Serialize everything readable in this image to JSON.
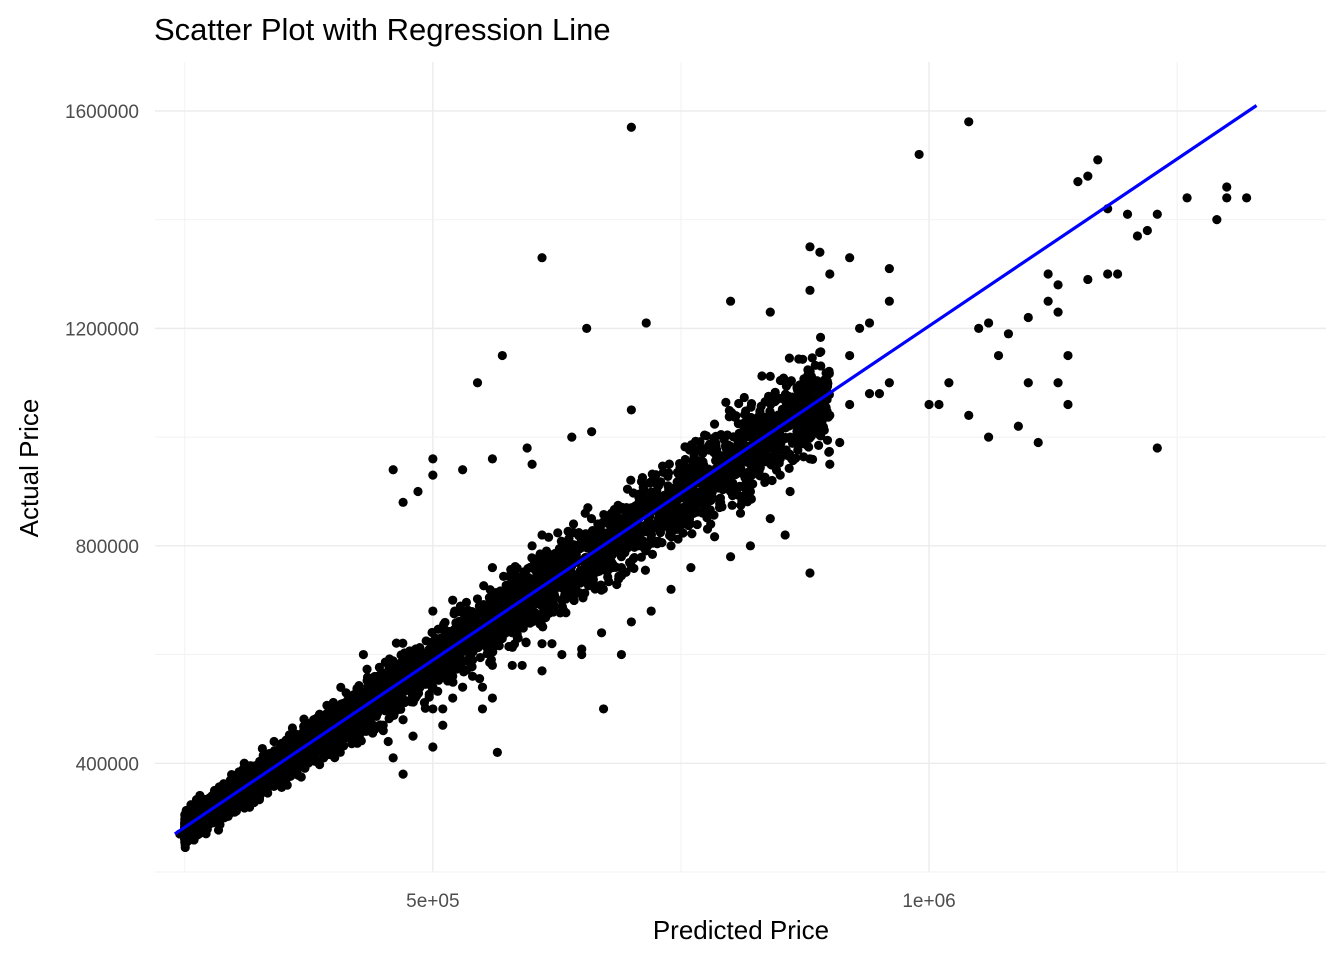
{
  "chart_data": {
    "type": "scatter",
    "title": "Scatter Plot with Regression Line",
    "xlabel": "Predicted Price",
    "ylabel": "Actual Price",
    "xlim": [
      220000,
      1400000
    ],
    "ylim": [
      200000,
      1690000
    ],
    "x_ticks": [
      500000,
      1000000
    ],
    "x_tick_labels": [
      "5e+05",
      "1e+06"
    ],
    "y_ticks": [
      400000,
      800000,
      1200000,
      1600000
    ],
    "y_tick_labels": [
      "400000",
      "800000",
      "1200000",
      "1600000"
    ],
    "grid": true,
    "colors": {
      "points": "#000000",
      "regression_line": "#0000ff"
    },
    "regression_line": {
      "x": [
        240000,
        1330000
      ],
      "y": [
        270000,
        1610000
      ]
    },
    "points_note_count": 0,
    "series": [
      {
        "x": [
          1040000,
          700000,
          990000,
          1170000,
          1150000,
          1160000,
          1180000,
          1320000,
          1300000,
          1290000,
          1300000,
          1260000,
          1230000,
          1200000,
          1220000,
          1210000,
          1190000,
          1130000,
          1100000,
          1060000,
          1050000,
          1080000,
          1120000,
          1140000,
          1070000,
          1040000,
          1060000,
          1120000,
          1160000,
          1130000,
          1180000,
          1130000,
          1140000,
          1230000,
          1110000,
          1100000,
          1020000,
          1010000,
          1090000,
          1000000,
          960000,
          950000,
          870000,
          870000,
          830000,
          920000,
          930000,
          940000,
          960000,
          900000,
          890000,
          880000,
          880000,
          840000,
          800000,
          920000,
          960000,
          830000,
          610000,
          715000,
          570000,
          545000,
          655000,
          700000,
          600000,
          500000,
          460000,
          565000,
          672000,
          880000,
          855000,
          840000,
          820000,
          800000,
          760000,
          740000,
          720000,
          700000,
          690000,
          650000,
          620000,
          610000,
          580000,
          560000,
          550000,
          520000,
          510000,
          470000,
          460000,
          455000,
          540000,
          500000,
          480000,
          660000,
          700000,
          640000,
          595000,
          560000,
          530000,
          500000,
          485000,
          470000,
          610000,
          680000,
          720000,
          655000,
          630000,
          650000,
          610000,
          560000,
          530000,
          500000,
          450000,
          400000,
          380000,
          360000,
          340000,
          320000,
          300000,
          290000,
          265000,
          250000,
          245000,
          260000,
          280000,
          300000,
          330000,
          350000,
          370000,
          390000,
          410000,
          430000,
          400000,
          420000,
          440000,
          460000,
          480000,
          500000,
          520000,
          540000,
          560000,
          580000,
          600000,
          620000,
          640000,
          660000,
          680000,
          700000,
          720000,
          740000,
          760000,
          780000,
          800000,
          820000,
          840000,
          860000,
          880000,
          900000,
          920000,
          940000,
          560000,
          600000,
          640000,
          700000,
          760000,
          800000,
          850000,
          880000,
          500000,
          520000,
          430000,
          480000,
          380000,
          340000,
          310000,
          280000,
          360000,
          420000,
          470000,
          520000,
          580000,
          620000,
          690000,
          720000,
          740000,
          790000,
          820000,
          850000,
          880000,
          910000,
          570000,
          540000,
          600000,
          650000,
          690000,
          740000,
          780000,
          810000,
          860000,
          900000,
          670000,
          630000,
          590000,
          550000,
          510000,
          470000,
          450000,
          420000,
          390000,
          370000,
          350000,
          330000,
          300000,
          270000,
          260000
        ],
        "y": [
          1580000,
          1570000,
          1520000,
          1510000,
          1470000,
          1480000,
          1420000,
          1440000,
          1460000,
          1400000,
          1440000,
          1440000,
          1410000,
          1410000,
          1380000,
          1370000,
          1300000,
          1230000,
          1220000,
          1210000,
          1200000,
          1190000,
          1250000,
          1150000,
          1150000,
          1040000,
          1000000,
          1300000,
          1290000,
          1280000,
          1300000,
          1100000,
          1060000,
          980000,
          990000,
          1100000,
          1100000,
          1060000,
          1020000,
          1060000,
          1100000,
          1080000,
          1050000,
          1000000,
          960000,
          1150000,
          1200000,
          1210000,
          1250000,
          1300000,
          1340000,
          1350000,
          1270000,
          1230000,
          1250000,
          1330000,
          1310000,
          960000,
          1330000,
          1210000,
          1150000,
          1100000,
          1200000,
          870000,
          950000,
          930000,
          940000,
          420000,
          500000,
          750000,
          820000,
          850000,
          800000,
          780000,
          760000,
          720000,
          680000,
          660000,
          600000,
          610000,
          620000,
          570000,
          580000,
          520000,
          500000,
          520000,
          470000,
          380000,
          410000,
          440000,
          560000,
          430000,
          450000,
          1010000,
          1050000,
          1000000,
          980000,
          960000,
          940000,
          960000,
          900000,
          880000,
          820000,
          860000,
          880000,
          750000,
          700000,
          600000,
          620000,
          580000,
          540000,
          500000,
          470000,
          440000,
          410000,
          380000,
          360000,
          330000,
          310000,
          300000,
          280000,
          260000,
          270000,
          310000,
          330000,
          350000,
          380000,
          400000,
          420000,
          440000,
          460000,
          480000,
          420000,
          440000,
          470000,
          490000,
          520000,
          540000,
          560000,
          590000,
          610000,
          640000,
          660000,
          690000,
          710000,
          740000,
          770000,
          800000,
          820000,
          850000,
          870000,
          900000,
          920000,
          950000,
          980000,
          1000000,
          1020000,
          1040000,
          1060000,
          1080000,
          760000,
          800000,
          780000,
          860000,
          920000,
          900000,
          960000,
          1010000,
          680000,
          700000,
          600000,
          560000,
          480000,
          440000,
          400000,
          350000,
          420000,
          500000,
          560000,
          620000,
          680000,
          740000,
          780000,
          810000,
          830000,
          880000,
          900000,
          930000,
          960000,
          990000,
          650000,
          620000,
          700000,
          740000,
          760000,
          800000,
          840000,
          860000,
          900000,
          950000,
          640000,
          600000,
          580000,
          540000,
          500000,
          480000,
          460000,
          440000,
          410000,
          400000,
          380000,
          360000,
          330000,
          300000,
          290000
        ]
      }
    ]
  }
}
